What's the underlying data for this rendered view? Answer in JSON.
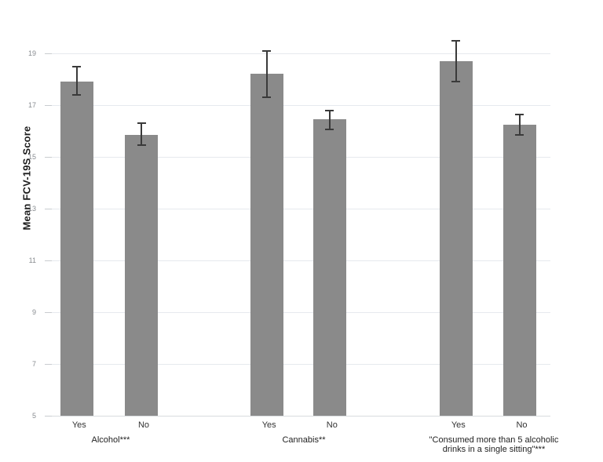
{
  "chart_data": {
    "type": "bar",
    "title": "",
    "xlabel": "",
    "ylabel": "Mean FCV-19S Score",
    "ylim": [
      5,
      19.6
    ],
    "y_ticks": [
      19,
      17,
      15,
      13,
      11,
      9,
      7,
      5
    ],
    "grid": true,
    "legend": "none",
    "bar_answer_labels": [
      "Yes",
      "No"
    ],
    "groups": [
      {
        "label": "Alcohol***",
        "bars": [
          {
            "label": "Yes",
            "value": 17.9,
            "err_low": 17.4,
            "err_high": 18.5
          },
          {
            "label": "No",
            "value": 15.85,
            "err_low": 15.45,
            "err_high": 16.3
          }
        ]
      },
      {
        "label": "Cannabis**",
        "bars": [
          {
            "label": "Yes",
            "value": 18.2,
            "err_low": 17.3,
            "err_high": 19.1
          },
          {
            "label": "No",
            "value": 16.45,
            "err_low": 16.05,
            "err_high": 16.8
          }
        ]
      },
      {
        "label": "\"Consumed more than 5 alcoholic drinks in a single sitting\"***",
        "bars": [
          {
            "label": "Yes",
            "value": 18.7,
            "err_low": 17.9,
            "err_high": 19.5
          },
          {
            "label": "No",
            "value": 16.25,
            "err_low": 15.85,
            "err_high": 16.65
          }
        ]
      }
    ],
    "colors": {
      "bar": "#8a8a8a",
      "error_bar": "#3a3a3a",
      "gridline": "#e6e9ee",
      "tick_label": "#888c90",
      "axis_title": "#1c1c1c",
      "x_label": "#333333"
    }
  }
}
